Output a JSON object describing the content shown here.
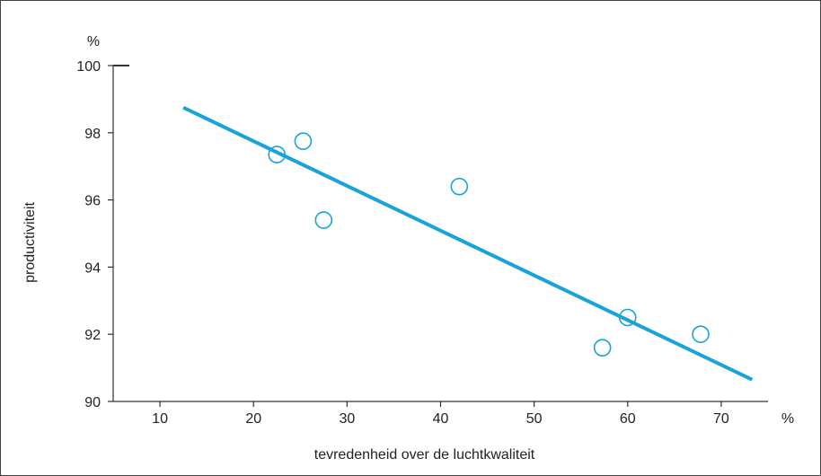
{
  "chart_data": {
    "type": "scatter",
    "xlabel": "tevredenheid over de luchtkwaliteit",
    "ylabel": "productiviteit",
    "x_unit": "%",
    "y_unit": "%",
    "xlim": [
      5,
      75
    ],
    "ylim": [
      90,
      100
    ],
    "x_ticks": [
      10,
      20,
      30,
      40,
      50,
      60,
      70
    ],
    "y_ticks": [
      90,
      92,
      94,
      96,
      98,
      100
    ],
    "grid": false,
    "series": [
      {
        "points": [
          {
            "x": 22.5,
            "y": 97.35
          },
          {
            "x": 25.3,
            "y": 97.75
          },
          {
            "x": 27.5,
            "y": 95.4
          },
          {
            "x": 42.0,
            "y": 96.4
          },
          {
            "x": 57.3,
            "y": 91.6
          },
          {
            "x": 60.0,
            "y": 92.5
          },
          {
            "x": 67.8,
            "y": 92.0
          }
        ]
      }
    ],
    "trendline": {
      "x_start": 12.5,
      "y_start": 98.75,
      "x_end": 73.3,
      "y_end": 90.65
    },
    "colors": {
      "marker": "#1aa3d9",
      "trendline": "#1aa3d9",
      "axis": "#333333"
    }
  }
}
